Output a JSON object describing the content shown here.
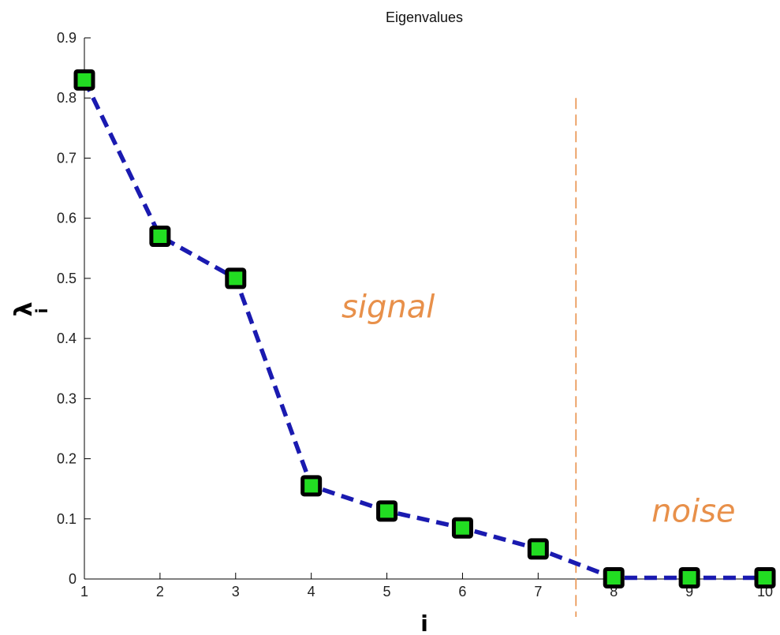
{
  "chart_data": {
    "type": "line",
    "title": "Eigenvalues",
    "xlabel": "i",
    "ylabel_main": "λ",
    "ylabel_sub": "i",
    "x": [
      1,
      2,
      3,
      4,
      5,
      6,
      7,
      8,
      9,
      10
    ],
    "series": [
      {
        "values": [
          0.83,
          0.57,
          0.5,
          0.155,
          0.113,
          0.085,
          0.05,
          0.002,
          0.002,
          0.002
        ]
      }
    ],
    "xlim": [
      1,
      10
    ],
    "ylim": [
      0,
      0.9
    ],
    "xticks": [
      "1",
      "2",
      "3",
      "4",
      "5",
      "6",
      "7",
      "8",
      "9",
      "10"
    ],
    "yticks": [
      "0",
      "0.1",
      "0.2",
      "0.3",
      "0.4",
      "0.5",
      "0.6",
      "0.7",
      "0.8",
      "0.9"
    ],
    "grid": false,
    "divider_x": 7.5,
    "annotations": [
      {
        "text": "signal",
        "x": 4.4,
        "y": 0.435
      },
      {
        "text": "noise",
        "x": 8.5,
        "y": 0.095
      }
    ],
    "colors": {
      "line": "#1a1ab0",
      "marker_fill": "#22dd22",
      "marker_edge": "#000000",
      "divider": "#e8904a",
      "annotation": "#e8904a"
    }
  }
}
